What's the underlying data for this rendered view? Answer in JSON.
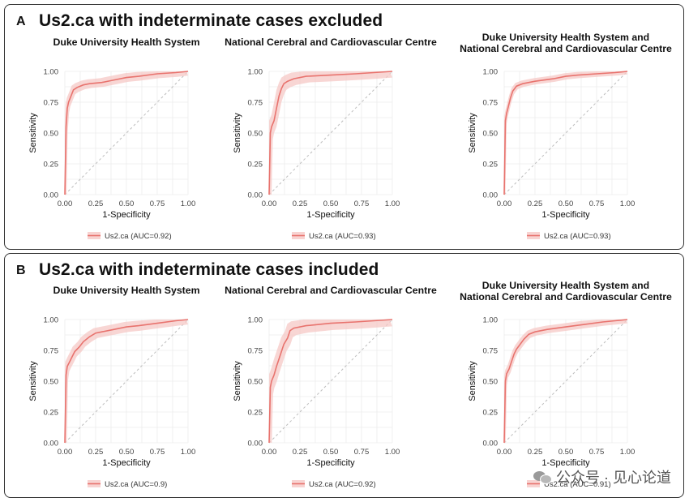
{
  "panels": [
    {
      "letter": "A",
      "title": "Us2.ca with indeterminate cases excluded"
    },
    {
      "letter": "B",
      "title": "Us2.ca with indeterminate cases included"
    }
  ],
  "watermark": {
    "text": "公众号 · 见心论道",
    "icon": "wechat-icon"
  },
  "colors": {
    "curve": "#e8736e",
    "band": "#f6c8c5",
    "diagonal": "#bdbdbd",
    "grid": "#ececec"
  },
  "chart_data": [
    {
      "type": "line",
      "panel": "A",
      "title_lines": [
        "Duke University Health System"
      ],
      "xlabel": "1-Specificity",
      "ylabel": "Sensitivity",
      "xlim": [
        0,
        1
      ],
      "ylim": [
        0,
        1
      ],
      "ticks": [
        "0.00",
        "0.25",
        "0.50",
        "0.75",
        "1.00"
      ],
      "grid": true,
      "series": [
        {
          "name": "Us2.ca (AUC=0.92)",
          "x": [
            0,
            0.01,
            0.02,
            0.03,
            0.05,
            0.07,
            0.1,
            0.15,
            0.2,
            0.3,
            0.4,
            0.5,
            0.6,
            0.75,
            0.9,
            1.0
          ],
          "y": [
            0,
            0.55,
            0.7,
            0.75,
            0.8,
            0.85,
            0.87,
            0.89,
            0.9,
            0.91,
            0.93,
            0.95,
            0.96,
            0.98,
            0.99,
            1.0
          ]
        }
      ],
      "band_width": 0.035
    },
    {
      "type": "line",
      "panel": "A",
      "title_lines": [
        "National Cerebral and Cardiovascular Centre"
      ],
      "xlabel": "1-Specificity",
      "ylabel": "Sensitivity",
      "xlim": [
        0,
        1
      ],
      "ylim": [
        0,
        1
      ],
      "ticks": [
        "0.00",
        "0.25",
        "0.50",
        "0.75",
        "1.00"
      ],
      "grid": true,
      "series": [
        {
          "name": "Us2.ca (AUC=0.93)",
          "x": [
            0,
            0.01,
            0.02,
            0.04,
            0.06,
            0.08,
            0.1,
            0.12,
            0.15,
            0.2,
            0.3,
            0.5,
            0.7,
            0.85,
            1.0
          ],
          "y": [
            0,
            0.5,
            0.55,
            0.6,
            0.7,
            0.8,
            0.86,
            0.9,
            0.92,
            0.94,
            0.96,
            0.97,
            0.98,
            0.99,
            1.0
          ]
        }
      ],
      "band_width": 0.05
    },
    {
      "type": "line",
      "panel": "A",
      "title_lines": [
        "Duke University Health System and",
        "National Cerebral and Cardiovascular Centre"
      ],
      "xlabel": "1-Specificity",
      "ylabel": "Sensitivity",
      "xlim": [
        0,
        1
      ],
      "ylim": [
        0,
        1
      ],
      "ticks": [
        "0.00",
        "0.25",
        "0.50",
        "0.75",
        "1.00"
      ],
      "grid": true,
      "series": [
        {
          "name": "Us2.ca (AUC=0.93)",
          "x": [
            0,
            0.01,
            0.02,
            0.03,
            0.05,
            0.07,
            0.1,
            0.15,
            0.25,
            0.4,
            0.5,
            0.6,
            0.75,
            0.9,
            1.0
          ],
          "y": [
            0,
            0.6,
            0.66,
            0.7,
            0.78,
            0.84,
            0.88,
            0.9,
            0.92,
            0.94,
            0.96,
            0.97,
            0.98,
            0.99,
            1.0
          ]
        }
      ],
      "band_width": 0.025
    },
    {
      "type": "line",
      "panel": "B",
      "title_lines": [
        "Duke University Health System"
      ],
      "xlabel": "1-Specificity",
      "ylabel": "Sensitivity",
      "xlim": [
        0,
        1
      ],
      "ylim": [
        0,
        1
      ],
      "ticks": [
        "0.00",
        "0.25",
        "0.50",
        "0.75",
        "1.00"
      ],
      "grid": true,
      "series": [
        {
          "name": "Us2.ca (AUC=0.9)",
          "x": [
            0,
            0.01,
            0.02,
            0.04,
            0.06,
            0.08,
            0.1,
            0.12,
            0.15,
            0.2,
            0.25,
            0.3,
            0.4,
            0.5,
            0.6,
            0.75,
            0.9,
            1.0
          ],
          "y": [
            0,
            0.55,
            0.62,
            0.66,
            0.7,
            0.74,
            0.76,
            0.78,
            0.82,
            0.86,
            0.89,
            0.9,
            0.92,
            0.94,
            0.95,
            0.97,
            0.99,
            1.0
          ]
        }
      ],
      "band_width": 0.04
    },
    {
      "type": "line",
      "panel": "B",
      "title_lines": [
        "National Cerebral and Cardiovascular Centre"
      ],
      "xlabel": "1-Specificity",
      "ylabel": "Sensitivity",
      "xlim": [
        0,
        1
      ],
      "ylim": [
        0,
        1
      ],
      "ticks": [
        "0.00",
        "0.25",
        "0.50",
        "0.75",
        "1.00"
      ],
      "grid": true,
      "series": [
        {
          "name": "Us2.ca (AUC=0.92)",
          "x": [
            0,
            0.01,
            0.02,
            0.04,
            0.06,
            0.08,
            0.1,
            0.12,
            0.15,
            0.17,
            0.2,
            0.3,
            0.5,
            0.7,
            0.85,
            1.0
          ],
          "y": [
            0,
            0.45,
            0.5,
            0.55,
            0.62,
            0.68,
            0.74,
            0.8,
            0.85,
            0.91,
            0.93,
            0.95,
            0.97,
            0.98,
            0.99,
            1.0
          ]
        }
      ],
      "band_width": 0.055
    },
    {
      "type": "line",
      "panel": "B",
      "title_lines": [
        "Duke University Health System and",
        "National Cerebral and Cardiovascular Centre"
      ],
      "xlabel": "1-Specificity",
      "ylabel": "Sensitivity",
      "xlim": [
        0,
        1
      ],
      "ylim": [
        0,
        1
      ],
      "ticks": [
        "0.00",
        "0.25",
        "0.50",
        "0.75",
        "1.00"
      ],
      "grid": true,
      "series": [
        {
          "name": "Us2.ca (AUC=0.91)",
          "x": [
            0,
            0.01,
            0.02,
            0.04,
            0.06,
            0.08,
            0.1,
            0.13,
            0.16,
            0.2,
            0.25,
            0.35,
            0.5,
            0.65,
            0.8,
            0.9,
            1.0
          ],
          "y": [
            0,
            0.5,
            0.56,
            0.6,
            0.66,
            0.72,
            0.76,
            0.8,
            0.84,
            0.88,
            0.9,
            0.92,
            0.94,
            0.96,
            0.98,
            0.99,
            1.0
          ]
        }
      ],
      "band_width": 0.03
    }
  ]
}
